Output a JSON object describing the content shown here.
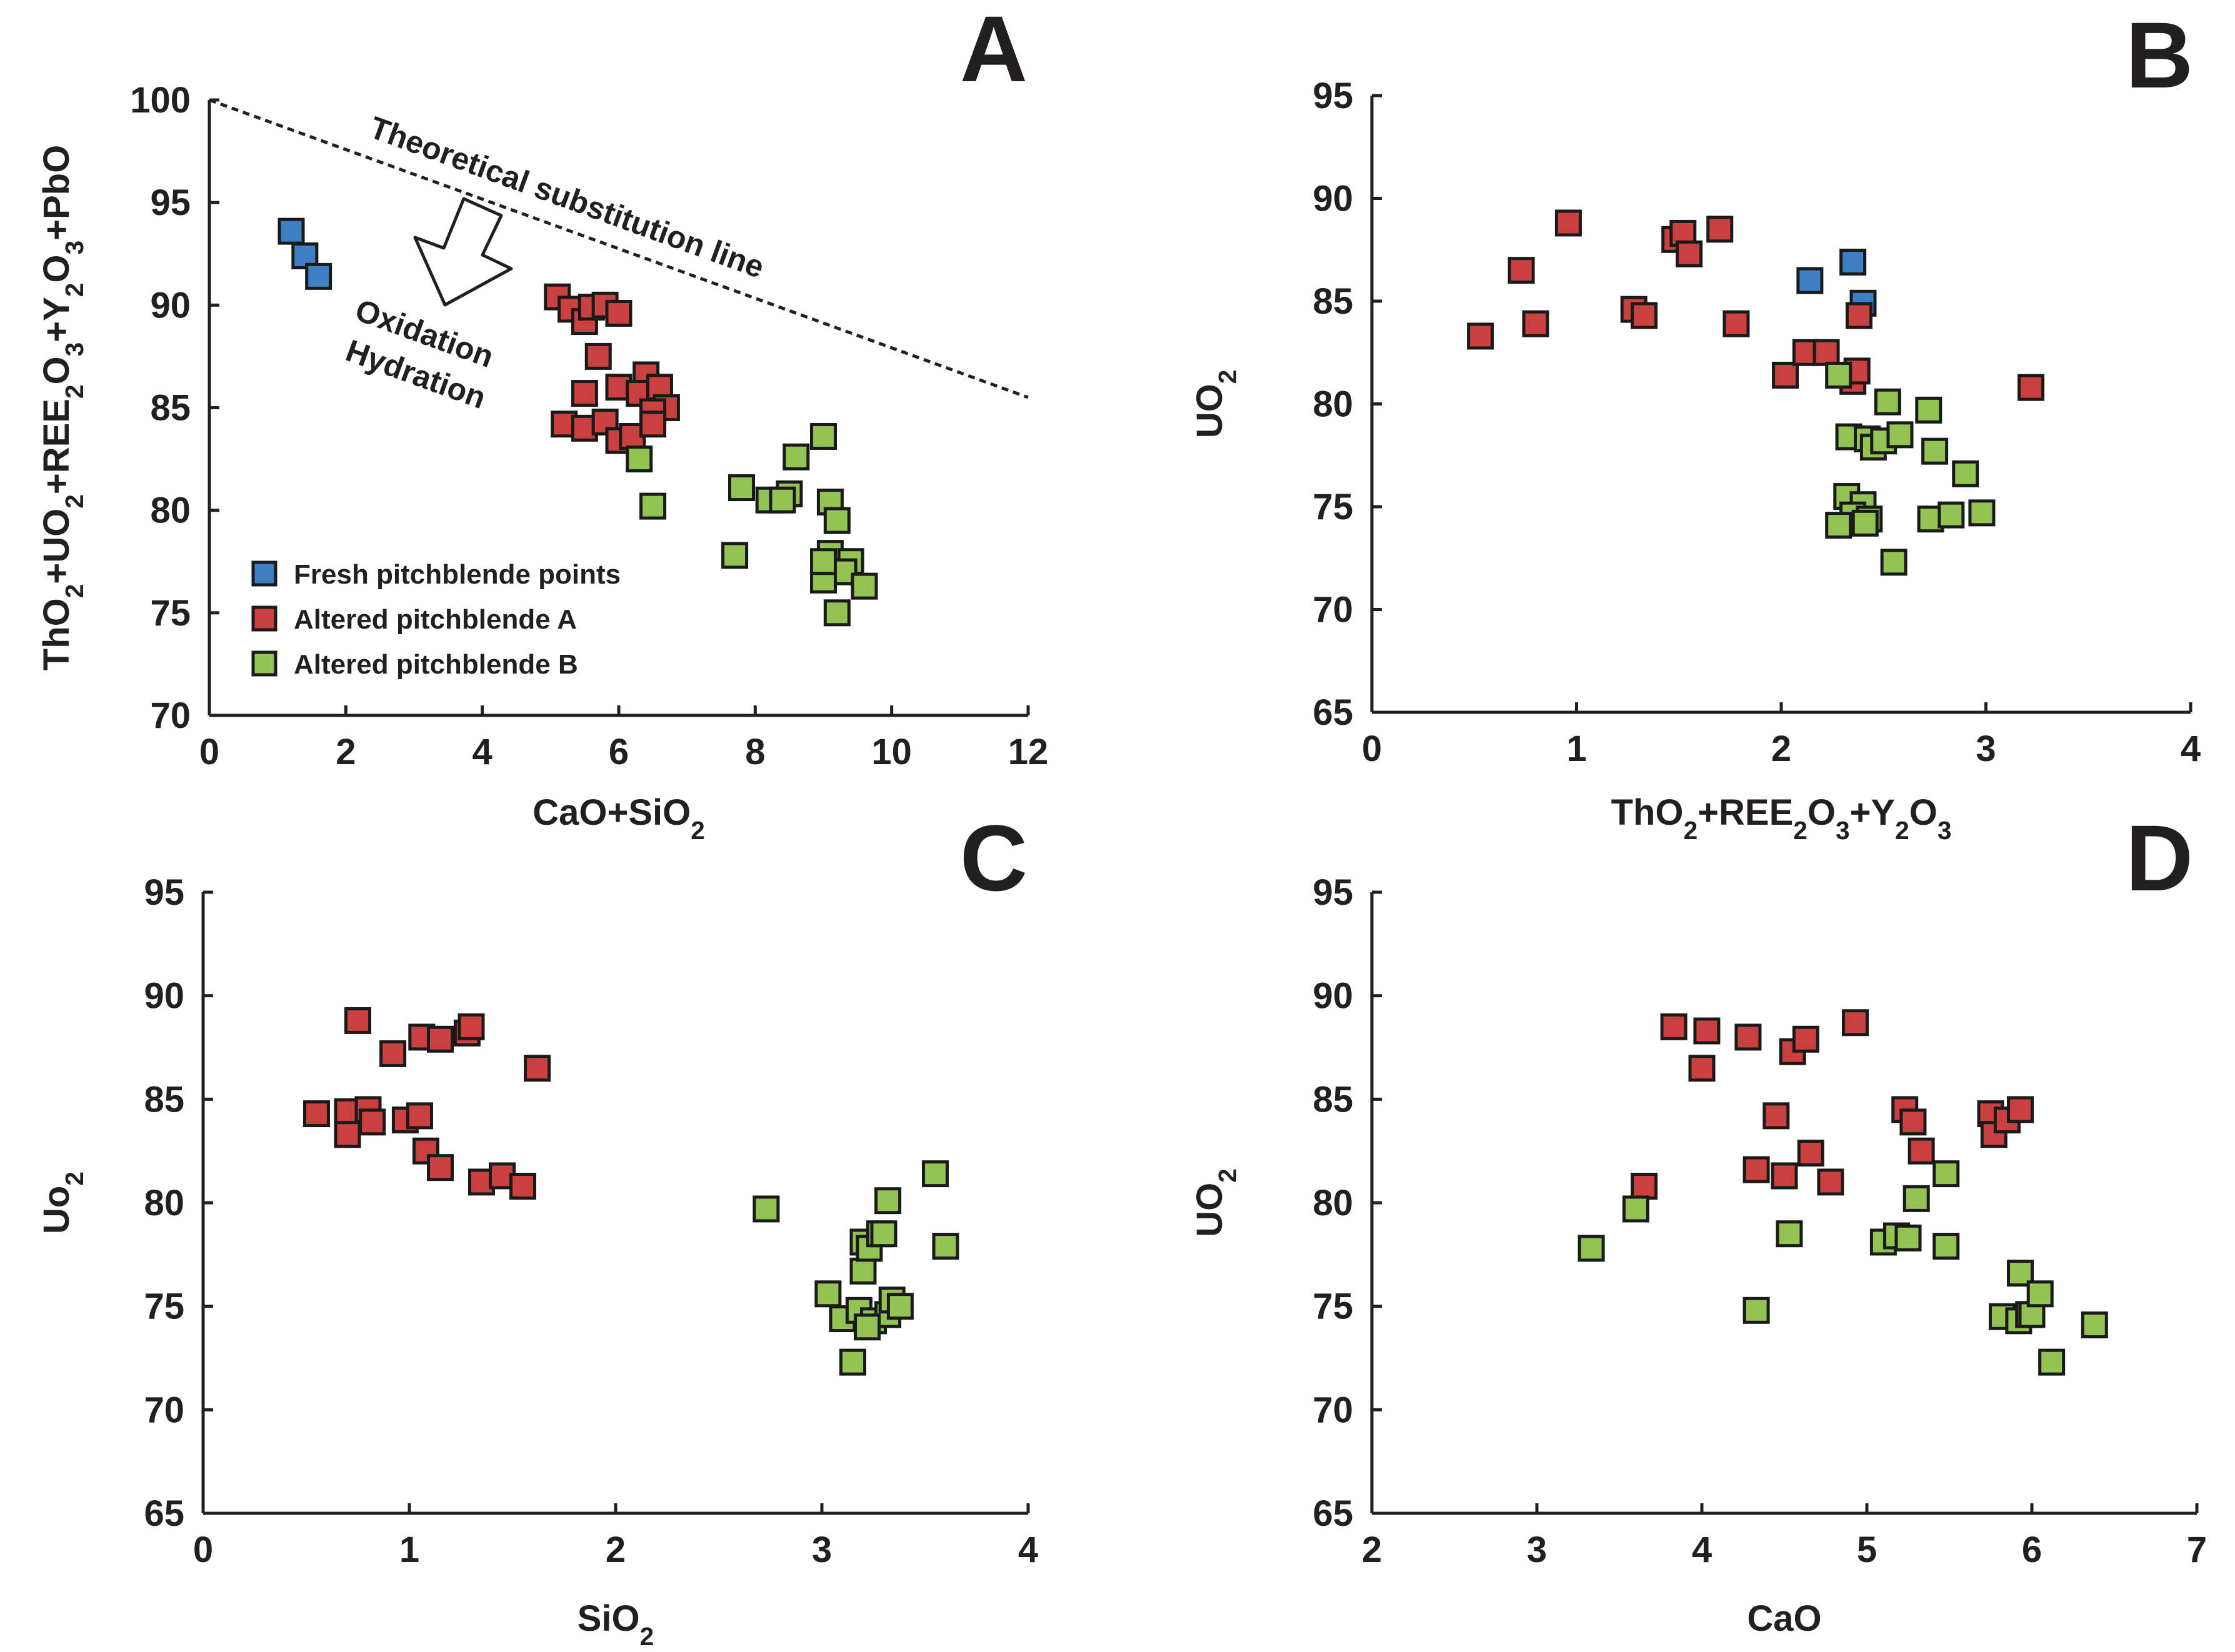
{
  "colors": {
    "fresh": "#3c7fc4",
    "altered_a": "#c9403f",
    "altered_b": "#92c353",
    "axis": "#231f20"
  },
  "chart_data": [
    {
      "id": "A",
      "type": "scatter",
      "letter": "A",
      "xlabel": "CaO+SiO",
      "xlabel_sub": "2",
      "ylabel_parts": [
        {
          "t": "ThO",
          "sub": false
        },
        {
          "t": "2",
          "sub": true
        },
        {
          "t": "+UO",
          "sub": false
        },
        {
          "t": "2",
          "sub": true
        },
        {
          "t": "+REE",
          "sub": false
        },
        {
          "t": "2",
          "sub": true
        },
        {
          "t": "O",
          "sub": false
        },
        {
          "t": "3",
          "sub": true
        },
        {
          "t": "+Y",
          "sub": false
        },
        {
          "t": "2",
          "sub": true
        },
        {
          "t": "O",
          "sub": false
        },
        {
          "t": "3",
          "sub": true
        },
        {
          "t": "+PbO",
          "sub": false
        }
      ],
      "xlim": [
        0,
        12
      ],
      "ylim": [
        70,
        100
      ],
      "xticks": [
        0,
        2,
        4,
        6,
        8,
        10,
        12
      ],
      "yticks": [
        70,
        75,
        80,
        85,
        90,
        95,
        100
      ],
      "annotations": {
        "theoretical_line": {
          "x": [
            0,
            12
          ],
          "y": [
            100,
            85.5
          ],
          "label": "Theoretical substitution line"
        },
        "arrow_label_1": "Oxidation",
        "arrow_label_2": "Hydration"
      },
      "legend": [
        {
          "label": "Fresh pitchblende points",
          "series": "fresh"
        },
        {
          "label": "Altered pitchblende A",
          "series": "altered_a"
        },
        {
          "label": "Altered pitchblende B",
          "series": "altered_b"
        }
      ],
      "series": [
        {
          "name": "fresh",
          "points": [
            [
              1.2,
              93.6
            ],
            [
              1.4,
              92.4
            ],
            [
              1.6,
              91.4
            ]
          ]
        },
        {
          "name": "altered_a",
          "points": [
            [
              5.1,
              90.4
            ],
            [
              5.3,
              89.8
            ],
            [
              5.5,
              89.2
            ],
            [
              5.6,
              89.9
            ],
            [
              5.8,
              90.0
            ],
            [
              6.0,
              89.6
            ],
            [
              5.7,
              87.5
            ],
            [
              6.4,
              86.6
            ],
            [
              6.0,
              86.0
            ],
            [
              5.5,
              85.7
            ],
            [
              6.3,
              85.7
            ],
            [
              6.6,
              86.0
            ],
            [
              6.7,
              85.0
            ],
            [
              6.5,
              84.8
            ],
            [
              5.2,
              84.2
            ],
            [
              5.5,
              84.0
            ],
            [
              5.8,
              84.3
            ],
            [
              6.0,
              83.4
            ],
            [
              6.2,
              83.6
            ],
            [
              6.5,
              84.2
            ]
          ]
        },
        {
          "name": "altered_b",
          "points": [
            [
              6.3,
              82.5
            ],
            [
              6.5,
              80.2
            ],
            [
              7.7,
              77.8
            ],
            [
              7.8,
              81.1
            ],
            [
              8.2,
              80.5
            ],
            [
              8.5,
              80.8
            ],
            [
              8.4,
              80.5
            ],
            [
              8.6,
              82.6
            ],
            [
              9.0,
              83.6
            ],
            [
              9.1,
              80.4
            ],
            [
              9.2,
              79.5
            ],
            [
              9.1,
              77.9
            ],
            [
              9.4,
              77.5
            ],
            [
              9.3,
              77.0
            ],
            [
              9.0,
              76.6
            ],
            [
              9.6,
              76.3
            ],
            [
              9.2,
              75.0
            ],
            [
              9.0,
              77.5
            ]
          ]
        }
      ]
    },
    {
      "id": "B",
      "type": "scatter",
      "letter": "B",
      "xlabel_parts": [
        {
          "t": "ThO",
          "sub": false
        },
        {
          "t": "2",
          "sub": true
        },
        {
          "t": "+REE",
          "sub": false
        },
        {
          "t": "2",
          "sub": true
        },
        {
          "t": "O",
          "sub": false
        },
        {
          "t": "3",
          "sub": true
        },
        {
          "t": "+Y",
          "sub": false
        },
        {
          "t": "2",
          "sub": true
        },
        {
          "t": "O",
          "sub": false
        },
        {
          "t": "3",
          "sub": true
        }
      ],
      "ylabel": "UO",
      "ylabel_sub": "2",
      "xlim": [
        0,
        4
      ],
      "ylim": [
        65,
        95
      ],
      "xticks": [
        0,
        1,
        2,
        3,
        4
      ],
      "yticks": [
        65,
        70,
        75,
        80,
        85,
        90,
        95
      ],
      "series": [
        {
          "name": "fresh",
          "points": [
            [
              2.14,
              86.0
            ],
            [
              2.35,
              86.9
            ],
            [
              2.4,
              84.9
            ]
          ]
        },
        {
          "name": "altered_a",
          "points": [
            [
              0.53,
              83.3
            ],
            [
              0.73,
              86.5
            ],
            [
              0.8,
              83.9
            ],
            [
              0.96,
              88.8
            ],
            [
              1.28,
              84.6
            ],
            [
              1.33,
              84.3
            ],
            [
              1.48,
              88.0
            ],
            [
              1.52,
              88.3
            ],
            [
              1.55,
              87.3
            ],
            [
              1.7,
              88.5
            ],
            [
              1.78,
              83.9
            ],
            [
              2.02,
              81.4
            ],
            [
              2.12,
              82.5
            ],
            [
              2.22,
              82.5
            ],
            [
              2.35,
              81.1
            ],
            [
              2.37,
              81.6
            ],
            [
              2.38,
              84.3
            ],
            [
              3.22,
              80.8
            ]
          ]
        },
        {
          "name": "altered_b",
          "points": [
            [
              2.28,
              81.4
            ],
            [
              2.33,
              78.4
            ],
            [
              2.42,
              78.3
            ],
            [
              2.45,
              77.9
            ],
            [
              2.5,
              78.2
            ],
            [
              2.52,
              80.1
            ],
            [
              2.58,
              78.5
            ],
            [
              2.72,
              79.7
            ],
            [
              2.75,
              77.7
            ],
            [
              2.9,
              76.6
            ],
            [
              2.32,
              75.5
            ],
            [
              2.4,
              75.1
            ],
            [
              2.35,
              74.6
            ],
            [
              2.43,
              74.4
            ],
            [
              2.41,
              74.2
            ],
            [
              2.28,
              74.1
            ],
            [
              2.55,
              72.3
            ],
            [
              2.73,
              74.4
            ],
            [
              2.83,
              74.6
            ],
            [
              2.98,
              74.7
            ]
          ]
        }
      ]
    },
    {
      "id": "C",
      "type": "scatter",
      "letter": "C",
      "xlabel": "SiO",
      "xlabel_sub": "2",
      "ylabel": "Uo",
      "ylabel_sub": "2",
      "xlim": [
        0,
        4
      ],
      "ylim": [
        65,
        95
      ],
      "xticks": [
        0,
        1,
        2,
        3,
        4
      ],
      "yticks": [
        65,
        70,
        75,
        80,
        85,
        90,
        95
      ],
      "series": [
        {
          "name": "altered_a",
          "points": [
            [
              0.55,
              84.3
            ],
            [
              0.7,
              84.4
            ],
            [
              0.7,
              83.3
            ],
            [
              0.75,
              88.8
            ],
            [
              0.8,
              84.5
            ],
            [
              0.82,
              83.9
            ],
            [
              0.92,
              87.2
            ],
            [
              0.98,
              84.0
            ],
            [
              1.05,
              84.2
            ],
            [
              1.06,
              88.0
            ],
            [
              1.08,
              82.5
            ],
            [
              1.15,
              81.7
            ],
            [
              1.15,
              87.9
            ],
            [
              1.28,
              88.2
            ],
            [
              1.3,
              88.5
            ],
            [
              1.35,
              81.0
            ],
            [
              1.45,
              81.3
            ],
            [
              1.55,
              80.8
            ],
            [
              1.62,
              86.5
            ]
          ]
        },
        {
          "name": "altered_b",
          "points": [
            [
              2.73,
              79.7
            ],
            [
              3.03,
              75.6
            ],
            [
              3.1,
              74.4
            ],
            [
              3.15,
              72.3
            ],
            [
              3.18,
              74.8
            ],
            [
              3.2,
              76.7
            ],
            [
              3.2,
              78.1
            ],
            [
              3.23,
              77.8
            ],
            [
              3.25,
              74.3
            ],
            [
              3.28,
              78.5
            ],
            [
              3.3,
              78.5
            ],
            [
              3.32,
              80.1
            ],
            [
              3.32,
              74.6
            ],
            [
              3.34,
              75.3
            ],
            [
              3.38,
              75.0
            ],
            [
              3.55,
              81.4
            ],
            [
              3.6,
              77.9
            ],
            [
              3.22,
              74.0
            ]
          ]
        }
      ]
    },
    {
      "id": "D",
      "type": "scatter",
      "letter": "D",
      "xlabel": "CaO",
      "ylabel": "UO",
      "ylabel_sub": "2",
      "xlim": [
        2,
        7
      ],
      "ylim": [
        65,
        95
      ],
      "xticks": [
        2,
        3,
        4,
        5,
        6,
        7
      ],
      "yticks": [
        65,
        70,
        75,
        80,
        85,
        90,
        95
      ],
      "series": [
        {
          "name": "altered_a",
          "points": [
            [
              3.65,
              80.8
            ],
            [
              3.83,
              88.5
            ],
            [
              4.0,
              86.5
            ],
            [
              4.03,
              88.3
            ],
            [
              4.28,
              88.0
            ],
            [
              4.33,
              81.6
            ],
            [
              4.45,
              84.2
            ],
            [
              4.5,
              81.3
            ],
            [
              4.55,
              87.3
            ],
            [
              4.63,
              87.9
            ],
            [
              4.66,
              82.4
            ],
            [
              4.78,
              81.0
            ],
            [
              4.93,
              88.7
            ],
            [
              5.23,
              84.5
            ],
            [
              5.28,
              83.9
            ],
            [
              5.33,
              82.5
            ],
            [
              5.75,
              84.3
            ],
            [
              5.77,
              83.3
            ],
            [
              5.85,
              84.0
            ],
            [
              5.93,
              84.5
            ]
          ]
        },
        {
          "name": "altered_b",
          "points": [
            [
              3.33,
              77.8
            ],
            [
              3.6,
              79.7
            ],
            [
              4.33,
              74.8
            ],
            [
              4.53,
              78.5
            ],
            [
              5.1,
              78.1
            ],
            [
              5.18,
              78.4
            ],
            [
              5.25,
              78.3
            ],
            [
              5.3,
              80.2
            ],
            [
              5.48,
              81.4
            ],
            [
              5.48,
              77.9
            ],
            [
              5.82,
              74.5
            ],
            [
              5.92,
              74.3
            ],
            [
              5.93,
              76.6
            ],
            [
              5.98,
              74.6
            ],
            [
              6.0,
              74.6
            ],
            [
              6.05,
              75.6
            ],
            [
              6.12,
              72.3
            ],
            [
              6.38,
              74.1
            ]
          ]
        }
      ]
    }
  ]
}
